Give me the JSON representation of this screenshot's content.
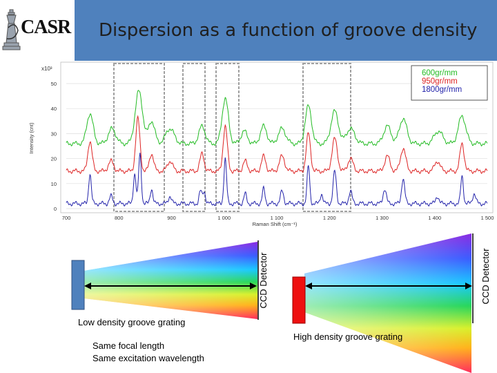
{
  "header": {
    "logo_text": "CASR",
    "title": "Dispersion as a function of groove density"
  },
  "chart_data": {
    "type": "line",
    "title": "",
    "xlabel": "Raman Shift (cm⁻¹)",
    "ylabel": "Intensity (cnt)",
    "y_multiplier": "x10³",
    "xlim": [
      700,
      1500
    ],
    "ylim": [
      0,
      58
    ],
    "x_ticks": [
      700,
      800,
      900,
      1000,
      1100,
      1200,
      1300,
      1400,
      1500
    ],
    "x_tick_labels": [
      "700",
      "800",
      "900",
      "1 000",
      "1 100",
      "1 200",
      "1 300",
      "1 400",
      "1 500"
    ],
    "y_ticks": [
      0,
      10,
      20,
      30,
      40,
      50
    ],
    "y_tick_labels": [
      "0",
      "10",
      "20",
      "30",
      "40",
      "50"
    ],
    "legend_position": "top-right",
    "series": [
      {
        "name": "600gr/mm",
        "color": "#22bb22",
        "baseline": 26,
        "peaks": [
          [
            745,
            12,
            6
          ],
          [
            787,
            6,
            7
          ],
          [
            838,
            21,
            7
          ],
          [
            862,
            9,
            6
          ],
          [
            897,
            6,
            8
          ],
          [
            958,
            7,
            6
          ],
          [
            1002,
            18,
            6
          ],
          [
            1038,
            5,
            6
          ],
          [
            1075,
            7,
            6
          ],
          [
            1110,
            6,
            7
          ],
          [
            1160,
            15,
            6
          ],
          [
            1210,
            13,
            7
          ],
          [
            1240,
            6,
            8
          ],
          [
            1310,
            7,
            7
          ],
          [
            1340,
            10,
            7
          ],
          [
            1407,
            5,
            8
          ],
          [
            1452,
            11,
            7
          ]
        ]
      },
      {
        "name": "950gr/mm",
        "color": "#dd2222",
        "baseline": 15,
        "peaks": [
          [
            745,
            12,
            4
          ],
          [
            785,
            4,
            5
          ],
          [
            836,
            21,
            4
          ],
          [
            862,
            7,
            4
          ],
          [
            897,
            4,
            5
          ],
          [
            958,
            7,
            4
          ],
          [
            1002,
            18,
            4
          ],
          [
            1040,
            4,
            4
          ],
          [
            1075,
            6,
            4
          ],
          [
            1110,
            6,
            5
          ],
          [
            1160,
            15,
            4
          ],
          [
            1210,
            13,
            5
          ],
          [
            1240,
            5,
            5
          ],
          [
            1310,
            6,
            5
          ],
          [
            1340,
            9,
            5
          ],
          [
            1405,
            4,
            5
          ],
          [
            1452,
            11,
            4
          ]
        ]
      },
      {
        "name": "1800gr/mm",
        "color": "#2222aa",
        "baseline": 2,
        "peaks": [
          [
            745,
            12,
            2.5
          ],
          [
            785,
            3,
            3
          ],
          [
            830,
            12,
            2.5
          ],
          [
            840,
            20,
            2.5
          ],
          [
            862,
            6,
            2.5
          ],
          [
            897,
            3,
            3
          ],
          [
            955,
            5,
            2.5
          ],
          [
            962,
            5,
            2.5
          ],
          [
            1002,
            18,
            2.5
          ],
          [
            1040,
            4,
            2.5
          ],
          [
            1075,
            6,
            2.5
          ],
          [
            1110,
            5,
            3
          ],
          [
            1160,
            15,
            2.5
          ],
          [
            1185,
            4,
            2.5
          ],
          [
            1210,
            13,
            3
          ],
          [
            1240,
            5,
            3
          ],
          [
            1305,
            6,
            3
          ],
          [
            1340,
            10,
            3
          ],
          [
            1405,
            3,
            3
          ],
          [
            1452,
            11,
            2.5
          ],
          [
            1475,
            4,
            3
          ]
        ]
      }
    ]
  },
  "diagram": {
    "low": {
      "label": "Low density groove grating",
      "detector": "CCD Detector"
    },
    "high": {
      "label": "High density groove grating",
      "detector": "CCD Detector"
    },
    "notes": [
      "Same focal length",
      "Same excitation wavelength"
    ]
  }
}
